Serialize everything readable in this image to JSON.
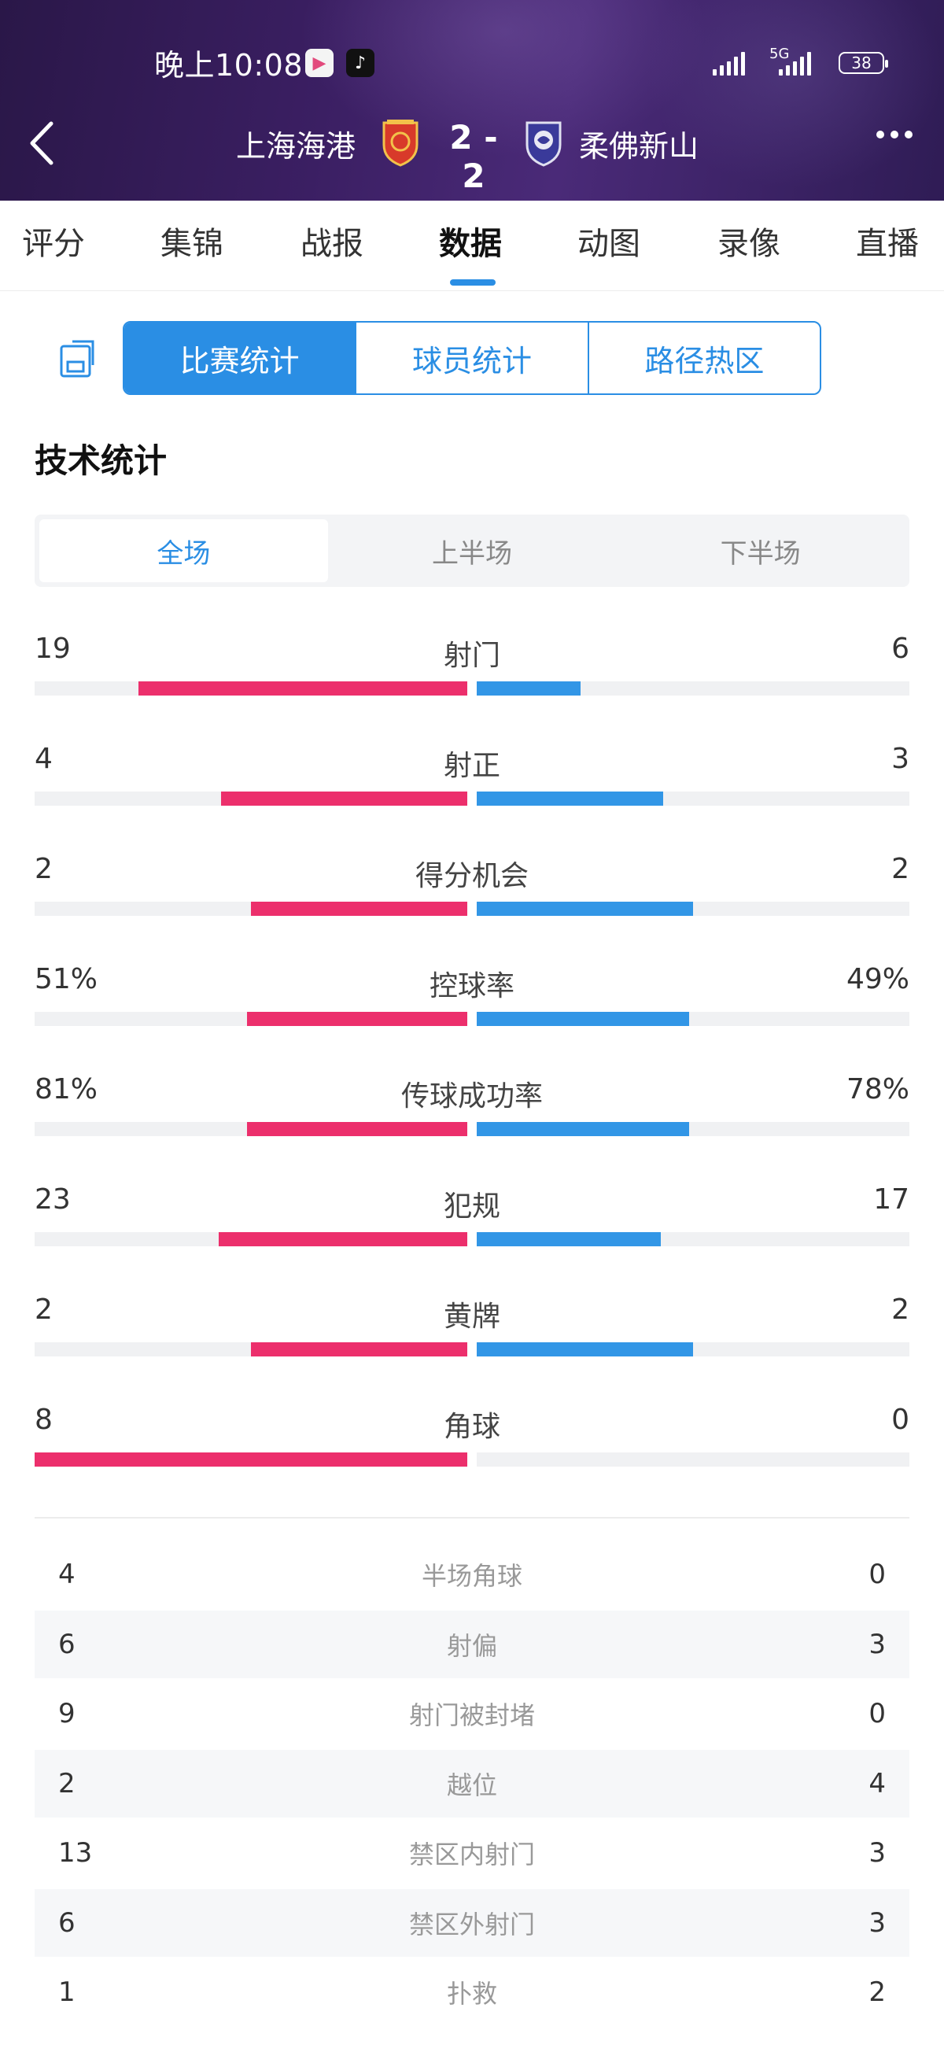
{
  "status_bar": {
    "time": "晚上10:08",
    "network": "5G",
    "battery": "38"
  },
  "match": {
    "home_team": "上海海港",
    "away_team": "柔佛新山",
    "score": "2 - 2",
    "home_color": "#d83a2a",
    "away_color": "#3a3a9a"
  },
  "tabs": [
    "评分",
    "集锦",
    "战报",
    "数据",
    "动图",
    "录像",
    "直播"
  ],
  "active_tab": "数据",
  "segments": [
    "比赛统计",
    "球员统计",
    "路径热区"
  ],
  "section_title": "技术统计",
  "periods": [
    "全场",
    "上半场",
    "下半场"
  ],
  "colors": {
    "accent": "#2a8ee4",
    "home_bar": "#ec2f6c",
    "away_bar": "#3296e6"
  },
  "stats": [
    {
      "label": "射门",
      "home": "19",
      "away": "6",
      "home_fraction": 0.76,
      "away_fraction": 0.24
    },
    {
      "label": "射正",
      "home": "4",
      "away": "3",
      "home_fraction": 0.57,
      "away_fraction": 0.43
    },
    {
      "label": "得分机会",
      "home": "2",
      "away": "2",
      "home_fraction": 0.5,
      "away_fraction": 0.5
    },
    {
      "label": "控球率",
      "home": "51%",
      "away": "49%",
      "home_fraction": 0.51,
      "away_fraction": 0.49
    },
    {
      "label": "传球成功率",
      "home": "81%",
      "away": "78%",
      "home_fraction": 0.51,
      "away_fraction": 0.49
    },
    {
      "label": "犯规",
      "home": "23",
      "away": "17",
      "home_fraction": 0.575,
      "away_fraction": 0.425
    },
    {
      "label": "黄牌",
      "home": "2",
      "away": "2",
      "home_fraction": 0.5,
      "away_fraction": 0.5
    },
    {
      "label": "角球",
      "home": "8",
      "away": "0",
      "home_fraction": 1.0,
      "away_fraction": 0.0
    }
  ],
  "table": [
    {
      "label": "半场角球",
      "home": "4",
      "away": "0"
    },
    {
      "label": "射偏",
      "home": "6",
      "away": "3"
    },
    {
      "label": "射门被封堵",
      "home": "9",
      "away": "0"
    },
    {
      "label": "越位",
      "home": "2",
      "away": "4"
    },
    {
      "label": "禁区内射门",
      "home": "13",
      "away": "3"
    },
    {
      "label": "禁区外射门",
      "home": "6",
      "away": "3"
    },
    {
      "label": "扑救",
      "home": "1",
      "away": "2"
    }
  ]
}
